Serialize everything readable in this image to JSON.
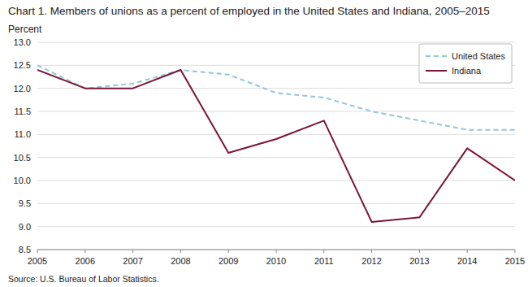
{
  "chart_data": {
    "type": "line",
    "title": "Chart 1. Members of unions as a percent of employed in the United States and Indiana, 2005–2015",
    "ylabel": "Percent",
    "annotations": [
      "Source: U.S. Bureau of Labor Statistics."
    ],
    "x": [
      2005,
      2006,
      2007,
      2008,
      2009,
      2010,
      2011,
      2012,
      2013,
      2014,
      2015
    ],
    "series": [
      {
        "name": "United States",
        "color": "#92C5DE",
        "line_style": "dashed",
        "values": [
          12.5,
          12.0,
          12.1,
          12.4,
          12.3,
          11.9,
          11.8,
          11.5,
          11.3,
          11.1,
          11.1
        ]
      },
      {
        "name": "Indiana",
        "color": "#7B1535",
        "line_style": "solid",
        "values": [
          12.4,
          12.0,
          12.0,
          12.4,
          10.6,
          10.9,
          11.3,
          9.1,
          9.2,
          10.7,
          10.0
        ]
      }
    ],
    "xlim": [
      2005,
      2015
    ],
    "xticks": [
      2005,
      2006,
      2007,
      2008,
      2009,
      2010,
      2011,
      2012,
      2013,
      2014,
      2015
    ],
    "ylim": [
      8.5,
      13.0
    ],
    "yticks": [
      8.5,
      {
        "value": 9.0,
        "label": "9.0"
      },
      9.5,
      {
        "value": 10.0,
        "label": "10.0"
      },
      10.5,
      {
        "value": 11.0,
        "label": "11.0"
      },
      11.5,
      {
        "value": 12.0,
        "label": "12.0"
      },
      12.5,
      {
        "value": 13.0,
        "label": "13.0"
      }
    ],
    "grid": true,
    "legend": "upper right"
  }
}
